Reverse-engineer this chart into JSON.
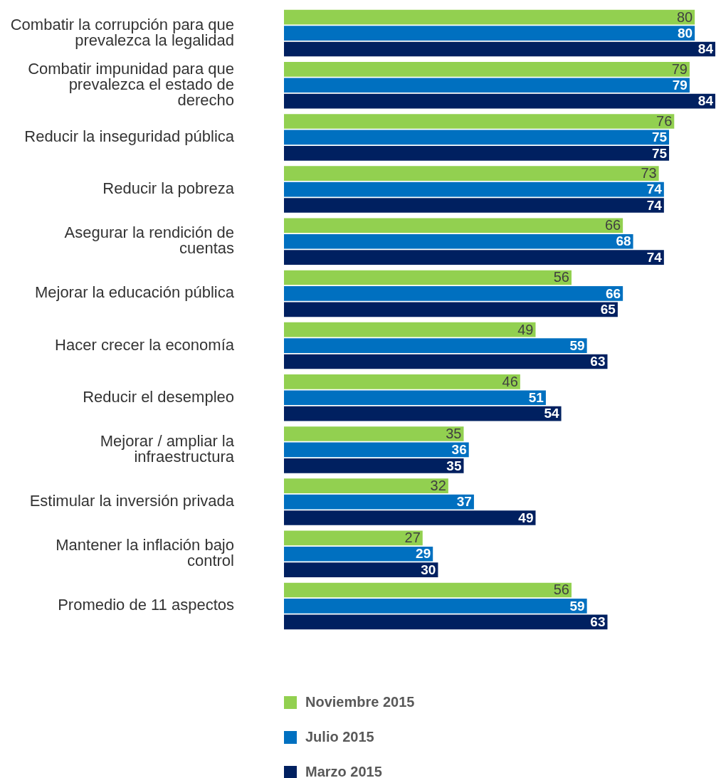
{
  "chart_data": {
    "type": "bar",
    "orientation": "horizontal",
    "data_labels": true,
    "legend": "bottom",
    "categories": [
      "Combatir la corrupción para que prevalezca la legalidad",
      "Combatir impunidad para que prevalezca el estado de derecho",
      "Reducir la inseguridad pública",
      "Reducir la pobreza",
      "Asegurar la rendición de cuentas",
      "Mejorar la educación pública",
      "Hacer crecer la economía",
      "Reducir el desempleo",
      "Mejorar / ampliar la infraestructura",
      "Estimular la inversión privada",
      "Mantener la inflación bajo control",
      "Promedio de 11 aspectos"
    ],
    "series": [
      {
        "name": "Noviembre 2015",
        "color": "#92d050",
        "values": [
          80,
          79,
          76,
          73,
          66,
          56,
          49,
          46,
          35,
          32,
          27,
          56
        ]
      },
      {
        "name": "Julio 2015",
        "color": "#0070c0",
        "values": [
          80,
          79,
          75,
          74,
          68,
          66,
          59,
          51,
          36,
          37,
          29,
          59
        ]
      },
      {
        "name": "Marzo 2015",
        "color": "#002060",
        "values": [
          84,
          84,
          75,
          74,
          74,
          65,
          63,
          54,
          35,
          49,
          30,
          63
        ]
      }
    ]
  }
}
